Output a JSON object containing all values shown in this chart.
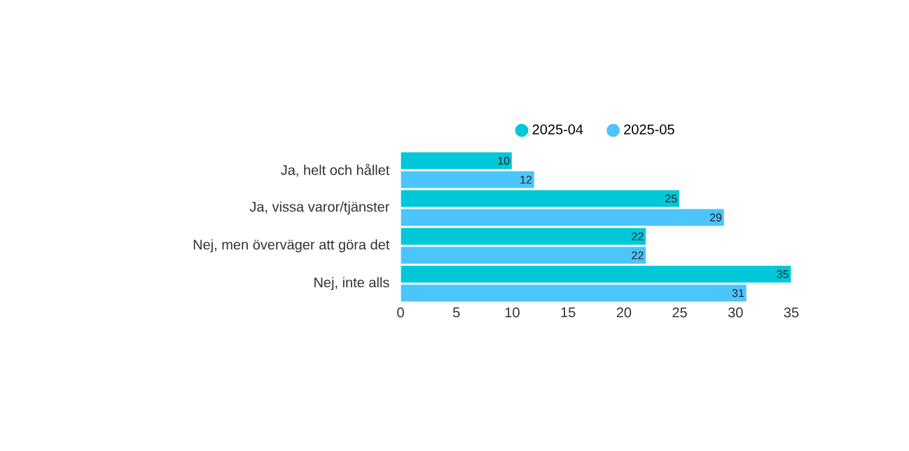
{
  "chart_data": {
    "type": "bar",
    "orientation": "horizontal",
    "categories": [
      "Ja, helt och hållet",
      "Ja, vissa varor/tjänster",
      "Nej, men överväger att göra det",
      "Nej, inte alls"
    ],
    "series": [
      {
        "name": "2025-04",
        "color": "#00c8d8",
        "values": [
          10,
          25,
          22,
          35
        ]
      },
      {
        "name": "2025-05",
        "color": "#4cc4fc",
        "values": [
          12,
          29,
          22,
          31
        ]
      }
    ],
    "xlim": [
      0,
      35
    ],
    "xticks": [
      0,
      5,
      10,
      15,
      20,
      25,
      30,
      35
    ],
    "data_labels": true,
    "legend": "top",
    "grid": false
  }
}
